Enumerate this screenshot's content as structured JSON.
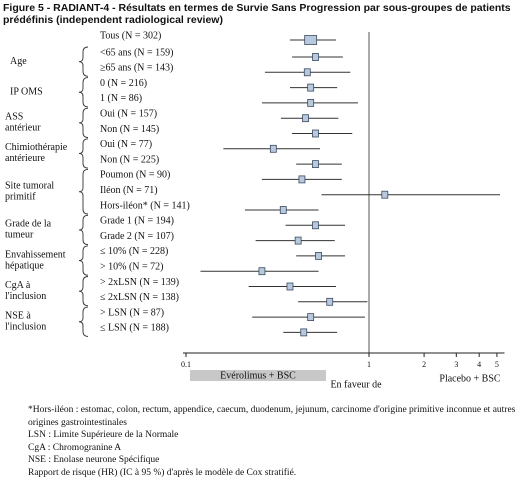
{
  "chart_data": {
    "type": "forest",
    "title": "Figure 5 - RADIANT-4 - Résultats en termes de Survie Sans Progression par sous-groupes de patients prédéfinis (independent radiological review)",
    "log_scale": true,
    "xlim": [
      0.1,
      5.5
    ],
    "xticks": [
      0.1,
      1,
      2,
      3,
      4,
      5
    ],
    "reference": 1,
    "box_color": "#b9c9dd",
    "overall": {
      "category": "Tous (N = 302)",
      "value": 0.48,
      "ci": [
        0.37,
        0.66
      ]
    },
    "subgroups": [
      {
        "label_lines": [
          "Age"
        ],
        "categories": [
          "<65 ans (N = 159)",
          "≥65 ans (N = 143)"
        ],
        "values": [
          0.51,
          0.46
        ],
        "ci": [
          [
            0.38,
            0.72
          ],
          [
            0.27,
            0.79
          ]
        ]
      },
      {
        "label_lines": [
          "IP OMS"
        ],
        "categories": [
          "0 (N = 216)",
          "1 (N = 86)"
        ],
        "values": [
          0.48,
          0.48
        ],
        "ci": [
          [
            0.37,
            0.67
          ],
          [
            0.26,
            0.87
          ]
        ]
      },
      {
        "label_lines": [
          "ASS",
          "antérieur"
        ],
        "categories": [
          "Oui (N = 157)",
          "Non (N = 145)"
        ],
        "values": [
          0.45,
          0.51
        ],
        "ci": [
          [
            0.33,
            0.68
          ],
          [
            0.38,
            0.81
          ]
        ]
      },
      {
        "label_lines": [
          "Chimiothérapie",
          "antérieure"
        ],
        "categories": [
          "Oui (N = 77)",
          "Non (N = 225)"
        ],
        "values": [
          0.3,
          0.51
        ],
        "ci": [
          [
            0.16,
            0.54
          ],
          [
            0.4,
            0.71
          ]
        ]
      },
      {
        "label_lines": [
          "Site tumoral",
          "primitif"
        ],
        "categories": [
          "Poumon (N = 90)",
          "Iléon (N = 71)",
          "Hors-iléon* (N = 141)"
        ],
        "values": [
          0.43,
          1.22,
          0.34
        ],
        "ci": [
          [
            0.26,
            0.71
          ],
          [
            0.55,
            5.2
          ],
          [
            0.21,
            0.53
          ]
        ]
      },
      {
        "label_lines": [
          "Grade de la",
          "tumeur"
        ],
        "categories": [
          "Grade 1 (N = 194)",
          "Grade 2 (N = 107)"
        ],
        "values": [
          0.51,
          0.41
        ],
        "ci": [
          [
            0.35,
            0.74
          ],
          [
            0.24,
            0.65
          ]
        ]
      },
      {
        "label_lines": [
          "Envahissement",
          "hépatique"
        ],
        "categories": [
          "≤ 10% (N = 228)",
          "> 10% (N = 72)"
        ],
        "values": [
          0.53,
          0.26
        ],
        "ci": [
          [
            0.4,
            0.74
          ],
          [
            0.12,
            0.53
          ]
        ]
      },
      {
        "label_lines": [
          "CgA à",
          "l'inclusion"
        ],
        "categories": [
          "> 2xLSN (N = 139)",
          "≤ 2xLSN (N = 138)"
        ],
        "values": [
          0.37,
          0.61
        ],
        "ci": [
          [
            0.22,
            0.66
          ],
          [
            0.41,
            0.98
          ]
        ]
      },
      {
        "label_lines": [
          "NSE à",
          "l'inclusion"
        ],
        "categories": [
          "> LSN (N = 87)",
          "≤ LSN (N = 188)"
        ],
        "values": [
          0.48,
          0.44
        ],
        "ci": [
          [
            0.23,
            0.95
          ],
          [
            0.34,
            0.67
          ]
        ]
      }
    ],
    "left_label": "Evérolimus + BSC",
    "center_label": "En faveur de",
    "right_label": "Placebo + BSC",
    "footnotes": [
      "*Hors-iléon : estomac, colon, rectum, appendice, caecum, duodenum, jejunum, carcinome d'origine primitive inconnue et autres origines gastrointestinales",
      "LSN : Limite Supérieure de la Normale",
      "CgA : Chromogranine A",
      "NSE : Enolase neurone Spécifique",
      "Rapport de risque (HR) (IC à 95 %) d'après le modèle de Cox stratifié."
    ]
  }
}
